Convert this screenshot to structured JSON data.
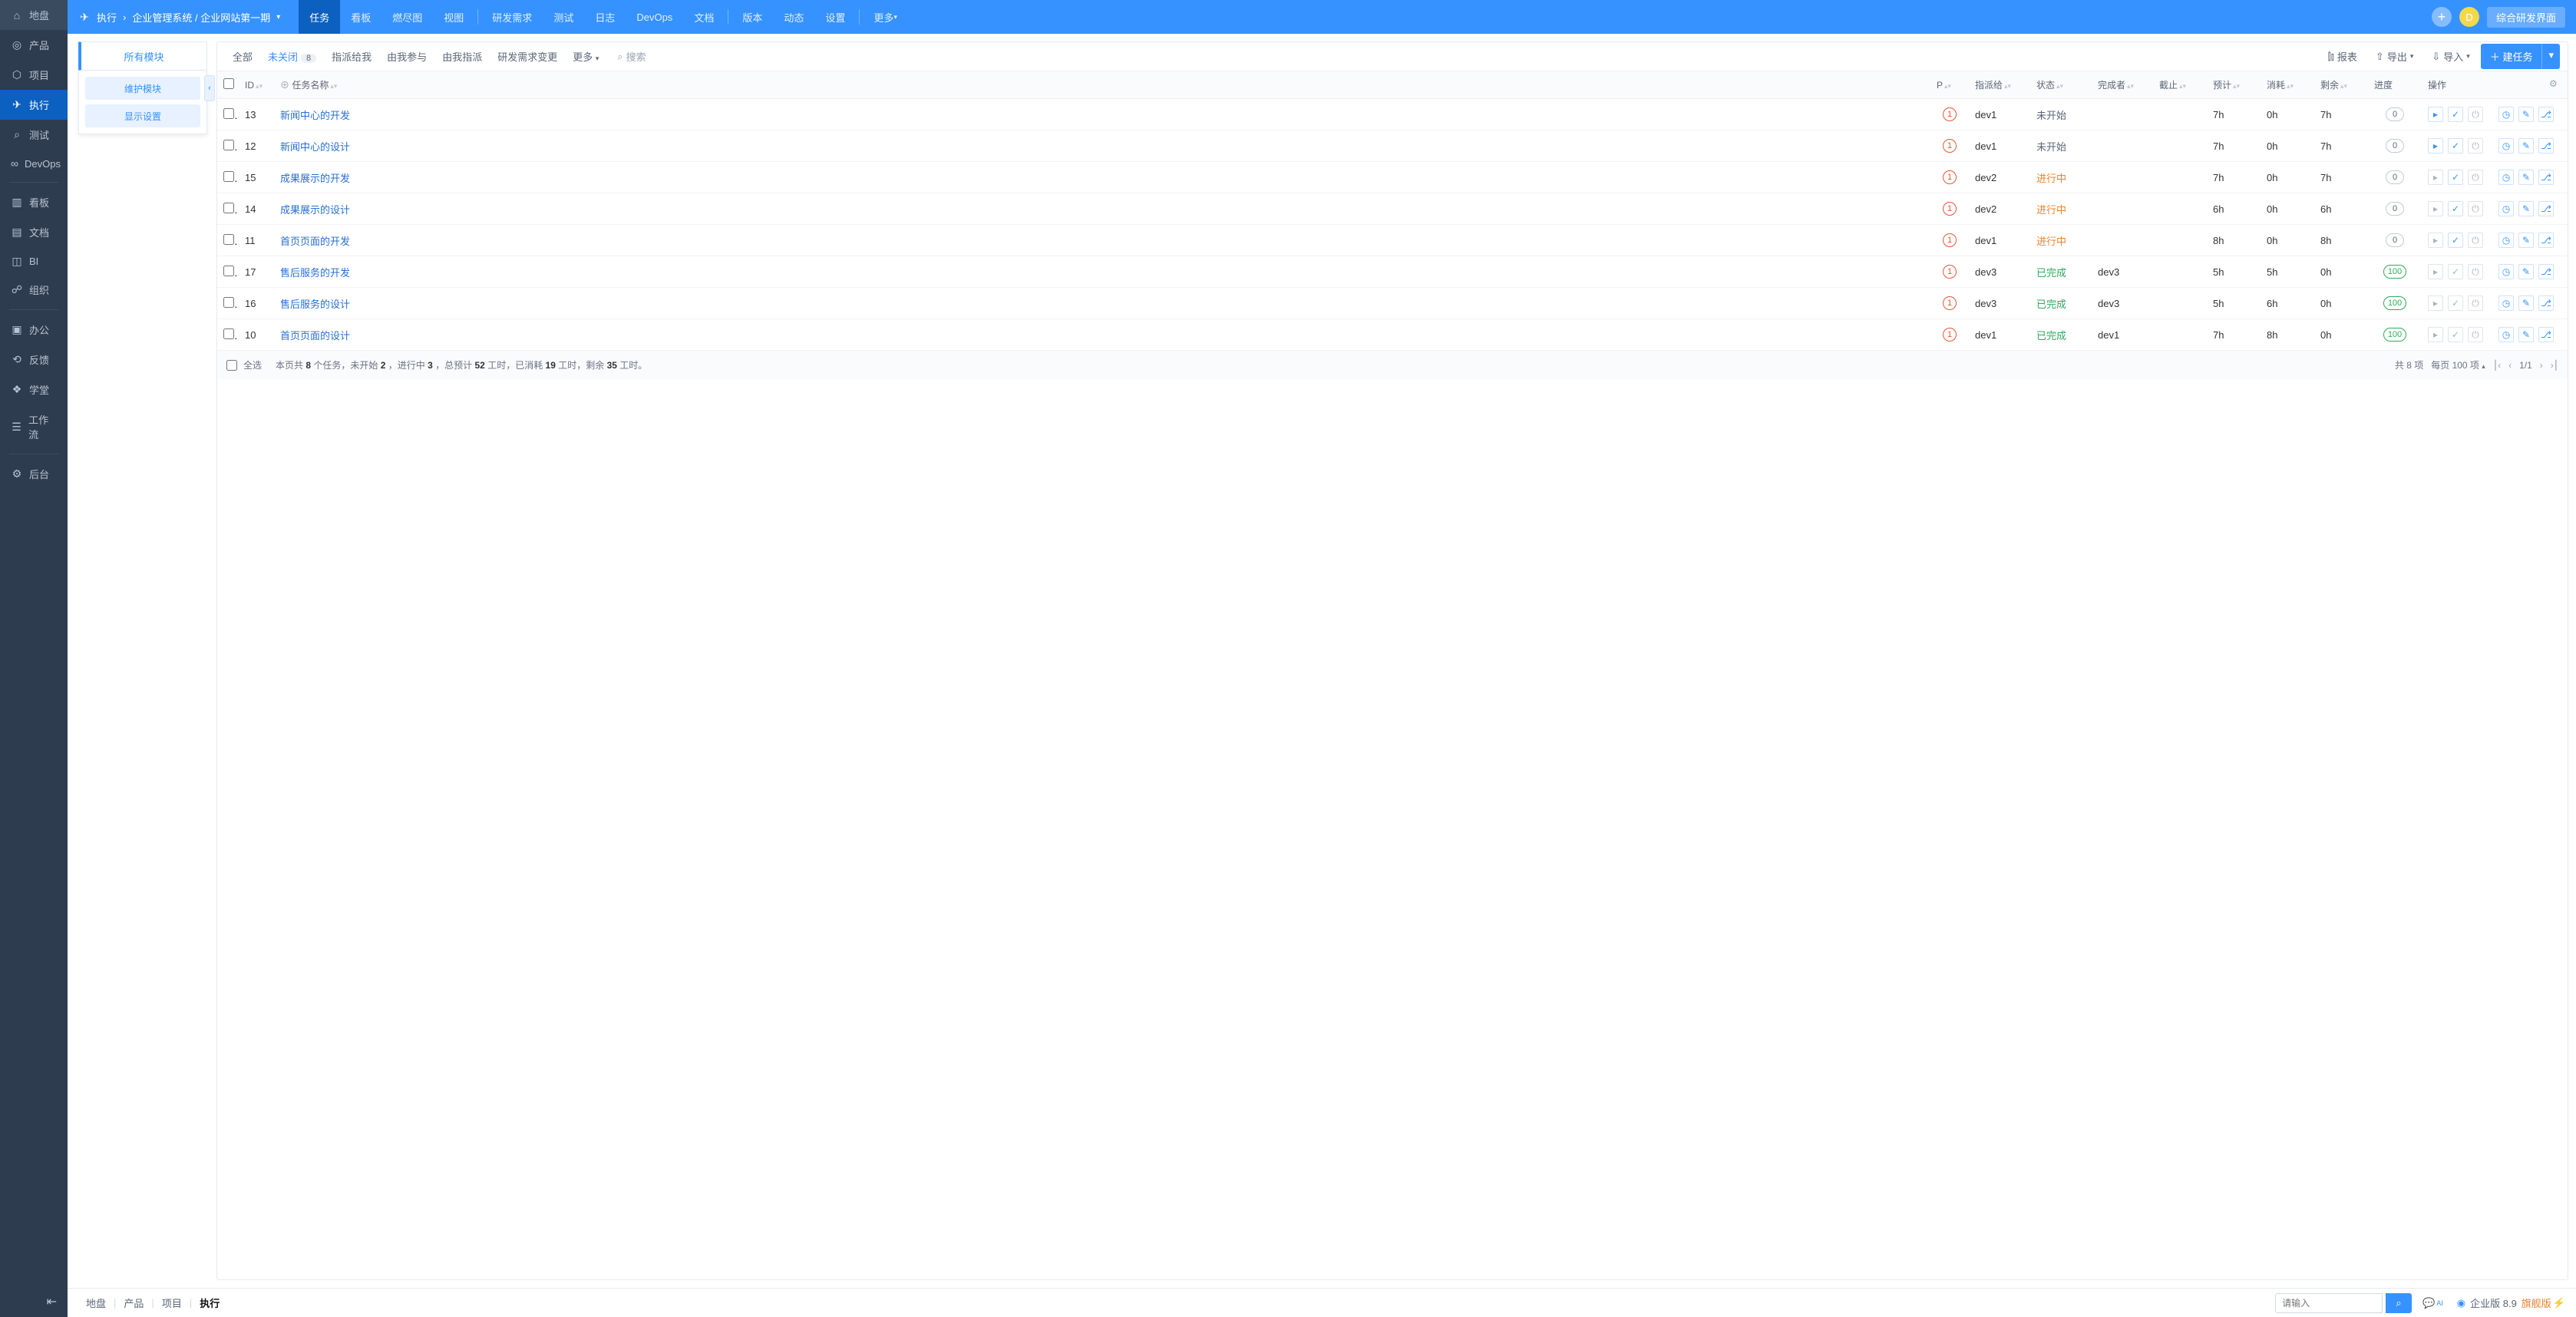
{
  "colors": {
    "primary": "#3692ff",
    "sidebar_bg": "#2e3c4f",
    "topbar_bg": "#3692ff",
    "active_bg": "#0c60bf",
    "link": "#2870d4",
    "doing": "#e6842e",
    "done": "#2faa5b"
  },
  "sidebar": {
    "items": [
      {
        "label": "地盘",
        "icon": "⌂",
        "active": false
      },
      {
        "label": "产品",
        "icon": "◎",
        "active": false
      },
      {
        "label": "项目",
        "icon": "⬡",
        "active": false
      },
      {
        "label": "执行",
        "icon": "✈",
        "active": true
      },
      {
        "label": "测试",
        "icon": "⌕",
        "active": false
      },
      {
        "label": "DevOps",
        "icon": "∞",
        "active": false
      }
    ],
    "group2": [
      {
        "label": "看板",
        "icon": "▥"
      },
      {
        "label": "文档",
        "icon": "▤"
      },
      {
        "label": "BI",
        "icon": "◫"
      },
      {
        "label": "组织",
        "icon": "☍"
      }
    ],
    "group3": [
      {
        "label": "办公",
        "icon": "▣"
      },
      {
        "label": "反馈",
        "icon": "⟲"
      },
      {
        "label": "学堂",
        "icon": "❖"
      },
      {
        "label": "工作流",
        "icon": "☰"
      }
    ],
    "group4": [
      {
        "label": "后台",
        "icon": "⚙"
      }
    ]
  },
  "topbar": {
    "crumb_root": "执行",
    "crumb_path": "企业管理系统 / 企业网站第一期",
    "tabs": [
      "任务",
      "看板",
      "燃尽图",
      "视图"
    ],
    "tabs2": [
      "研发需求",
      "测试",
      "日志",
      "DevOps",
      "文档"
    ],
    "tabs3": [
      "版本",
      "动态",
      "设置"
    ],
    "more": "更多",
    "active_tab": "任务",
    "avatar_letter": "D",
    "mode_label": "综合研发界面"
  },
  "module_panel": {
    "title": "所有模块",
    "btn_maintain": "维护模块",
    "btn_display": "显示设置"
  },
  "toolbar": {
    "filters": [
      {
        "label": "全部",
        "active": false
      },
      {
        "label": "未关闭",
        "active": true,
        "badge": "8"
      },
      {
        "label": "指派给我",
        "active": false
      },
      {
        "label": "由我参与",
        "active": false
      },
      {
        "label": "由我指派",
        "active": false
      },
      {
        "label": "研发需求变更",
        "active": false
      },
      {
        "label": "更多",
        "active": false,
        "caret": true
      }
    ],
    "search_label": "搜索",
    "report": "报表",
    "export": "导出",
    "import": "导入",
    "create": "建任务"
  },
  "table": {
    "columns": {
      "id": "ID",
      "name": "任务名称",
      "p": "P",
      "assignee": "指派给",
      "status": "状态",
      "finisher": "完成者",
      "deadline": "截止",
      "estimate": "预计",
      "consumed": "消耗",
      "remaining": "剩余",
      "progress": "进度",
      "actions": "操作"
    },
    "rows": [
      {
        "id": "13",
        "name": "新闻中心的开发",
        "assignee": "dev1",
        "status": "未开始",
        "status_cls": "pending",
        "finisher": "",
        "deadline": "",
        "estimate": "7h",
        "consumed": "0h",
        "remaining": "7h",
        "progress": "0",
        "done": false,
        "playable": true
      },
      {
        "id": "12",
        "name": "新闻中心的设计",
        "assignee": "dev1",
        "status": "未开始",
        "status_cls": "pending",
        "finisher": "",
        "deadline": "",
        "estimate": "7h",
        "consumed": "0h",
        "remaining": "7h",
        "progress": "0",
        "done": false,
        "playable": true
      },
      {
        "id": "15",
        "name": "成果展示的开发",
        "assignee": "dev2",
        "status": "进行中",
        "status_cls": "doing",
        "finisher": "",
        "deadline": "",
        "estimate": "7h",
        "consumed": "0h",
        "remaining": "7h",
        "progress": "0",
        "done": false,
        "playable": false
      },
      {
        "id": "14",
        "name": "成果展示的设计",
        "assignee": "dev2",
        "status": "进行中",
        "status_cls": "doing",
        "finisher": "",
        "deadline": "",
        "estimate": "6h",
        "consumed": "0h",
        "remaining": "6h",
        "progress": "0",
        "done": false,
        "playable": false
      },
      {
        "id": "11",
        "name": "首页页面的开发",
        "assignee": "dev1",
        "status": "进行中",
        "status_cls": "doing",
        "finisher": "",
        "deadline": "",
        "estimate": "8h",
        "consumed": "0h",
        "remaining": "8h",
        "progress": "0",
        "done": false,
        "playable": false
      },
      {
        "id": "17",
        "name": "售后服务的开发",
        "assignee": "dev3",
        "status": "已完成",
        "status_cls": "done",
        "finisher": "dev3",
        "deadline": "",
        "estimate": "5h",
        "consumed": "5h",
        "remaining": "0h",
        "progress": "100",
        "done": true,
        "playable": false
      },
      {
        "id": "16",
        "name": "售后服务的设计",
        "assignee": "dev3",
        "status": "已完成",
        "status_cls": "done",
        "finisher": "dev3",
        "deadline": "",
        "estimate": "5h",
        "consumed": "6h",
        "remaining": "0h",
        "progress": "100",
        "done": true,
        "playable": false
      },
      {
        "id": "10",
        "name": "首页页面的设计",
        "assignee": "dev1",
        "status": "已完成",
        "status_cls": "done",
        "finisher": "dev1",
        "deadline": "",
        "estimate": "7h",
        "consumed": "8h",
        "remaining": "0h",
        "progress": "100",
        "done": true,
        "playable": false
      }
    ]
  },
  "footer": {
    "select_all": "全选",
    "summary_parts": {
      "p1": "本页共 ",
      "n1": "8",
      "p2": " 个任务，未开始 ",
      "n2": "2",
      "p3": "，进行中 ",
      "n3": "3",
      "p4": "，总预计 ",
      "n4": "52",
      "p5": " 工时，已消耗 ",
      "n5": "19",
      "p6": " 工时，剩余 ",
      "n6": "35",
      "p7": " 工时。"
    },
    "total": "共 8 项",
    "per_page": "每页 100 项",
    "page": "1/1"
  },
  "bottombar": {
    "items": [
      "地盘",
      "产品",
      "项目",
      "执行"
    ],
    "active_index": 3,
    "search_placeholder": "请输入",
    "version_label": "企业版 8.9",
    "edition": "旗舰版"
  }
}
